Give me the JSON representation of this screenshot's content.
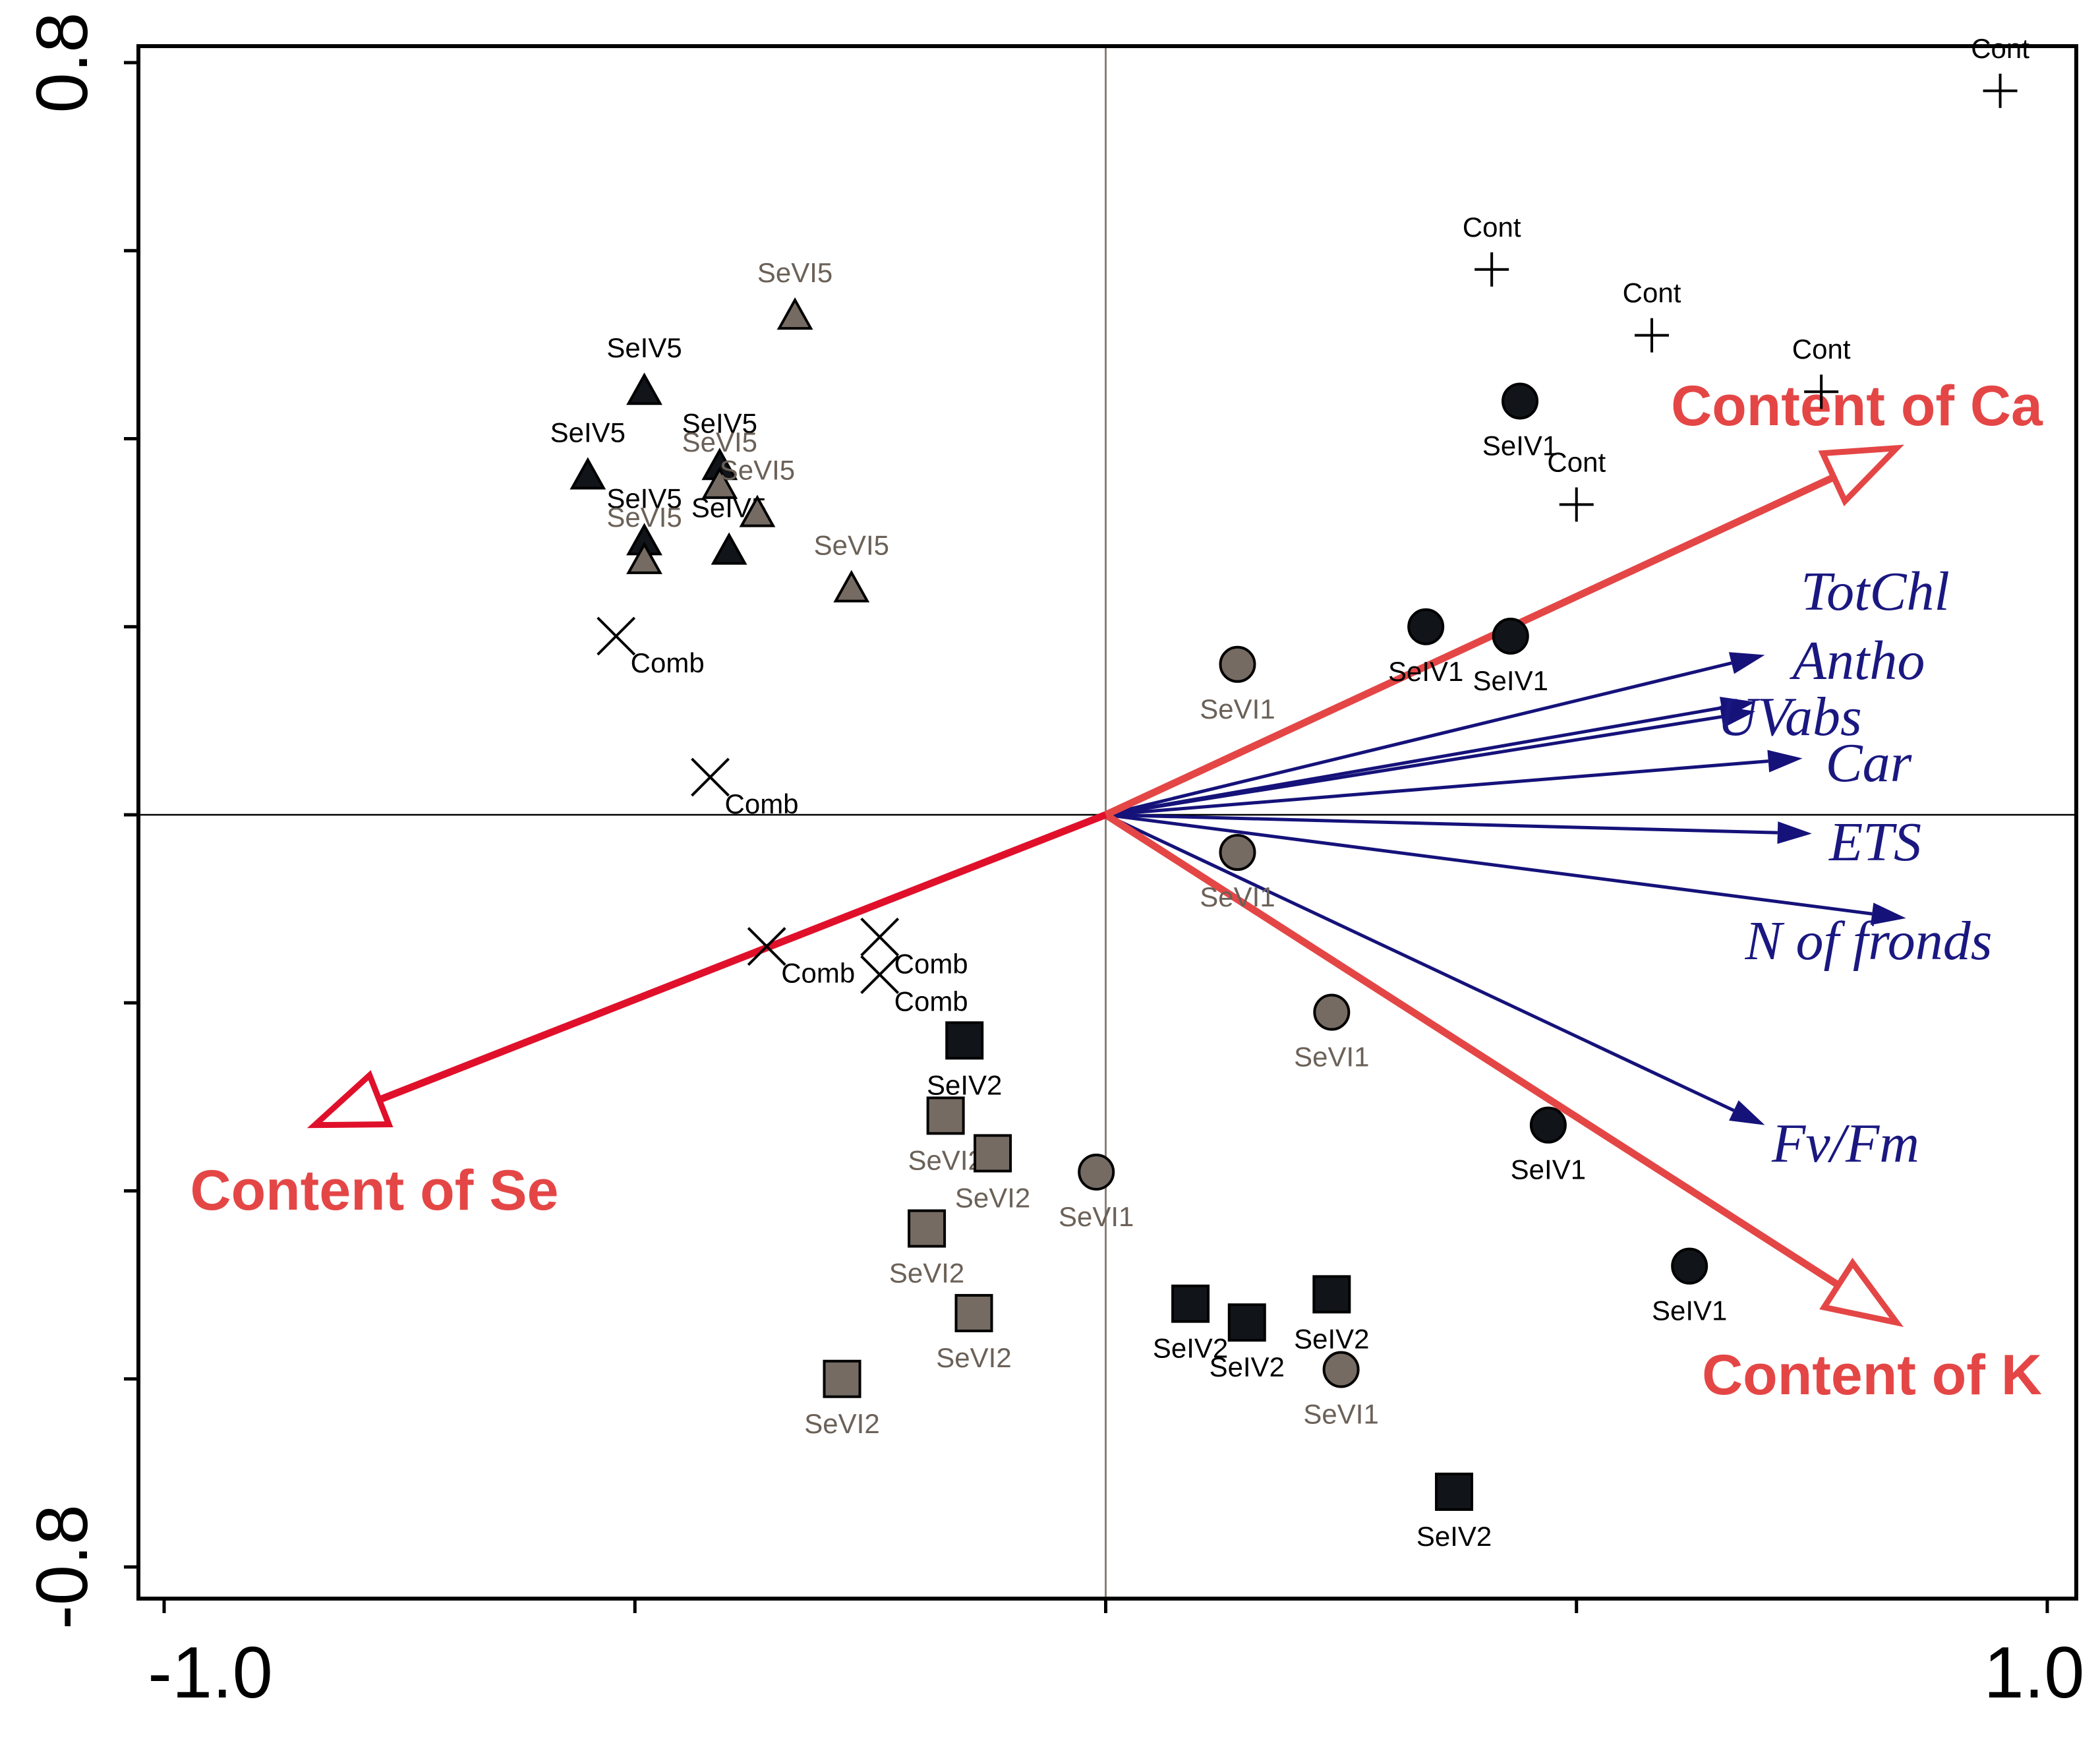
{
  "chart_data": {
    "type": "scatter",
    "subtype": "ordination-biplot",
    "title": "",
    "xlabel": "",
    "ylabel": "",
    "xlim": [
      -1.0,
      1.0
    ],
    "ylim": [
      -0.8,
      0.8
    ],
    "x_tick_labels": [
      {
        "value": -1.0,
        "label": "-1.0"
      },
      {
        "value": 1.0,
        "label": "1.0"
      }
    ],
    "y_tick_labels": [
      {
        "value": 0.8,
        "label": "0.8"
      },
      {
        "value": -0.8,
        "label": "-0.8"
      }
    ],
    "x_ticks": [
      -1.0,
      -0.5,
      0.0,
      0.5,
      1.0
    ],
    "y_ticks": [
      -0.8,
      -0.6,
      -0.4,
      -0.2,
      0.0,
      0.2,
      0.4,
      0.6,
      0.8
    ],
    "colors": {
      "black_marker": "#111419",
      "gray_marker": "#756b62",
      "gray_label": "#6b6158",
      "env_arrow": "#e44646",
      "env_arrow_dark": "#e0102b",
      "resp_arrow": "#15127a",
      "resp_text": "#1a1880",
      "env_text": "#e44646"
    },
    "sample_groups": [
      {
        "name": "Cont",
        "marker": "plus",
        "color": "#000000",
        "points": [
          {
            "x": 0.95,
            "y": 0.77,
            "label": "Cont"
          },
          {
            "x": 0.41,
            "y": 0.58,
            "label": "Cont"
          },
          {
            "x": 0.58,
            "y": 0.51,
            "label": "Cont"
          },
          {
            "x": 0.76,
            "y": 0.45,
            "label": "Cont"
          },
          {
            "x": 0.5,
            "y": 0.33,
            "label": "Cont"
          }
        ]
      },
      {
        "name": "SeIV1",
        "marker": "circle",
        "color": "#111419",
        "points": [
          {
            "x": 0.44,
            "y": 0.44,
            "label": "SeIV1"
          },
          {
            "x": 0.34,
            "y": 0.2,
            "label": "SeIV1"
          },
          {
            "x": 0.43,
            "y": 0.19,
            "label": "SeIV1"
          },
          {
            "x": 0.47,
            "y": -0.33,
            "label": "SeIV1"
          },
          {
            "x": 0.62,
            "y": -0.48,
            "label": "SeIV1"
          }
        ]
      },
      {
        "name": "SeVI1",
        "marker": "circle",
        "color": "#756b62",
        "points": [
          {
            "x": 0.14,
            "y": 0.16,
            "label": "SeVI1"
          },
          {
            "x": 0.14,
            "y": -0.04,
            "label": "SeVI1"
          },
          {
            "x": 0.24,
            "y": -0.21,
            "label": "SeVI1"
          },
          {
            "x": -0.01,
            "y": -0.38,
            "label": "SeVI1"
          },
          {
            "x": 0.25,
            "y": -0.59,
            "label": "SeVI1"
          }
        ]
      },
      {
        "name": "SeIV2",
        "marker": "square",
        "color": "#111419",
        "points": [
          {
            "x": -0.15,
            "y": -0.24,
            "label": "SeIV2"
          },
          {
            "x": 0.09,
            "y": -0.52,
            "label": "SeIV2"
          },
          {
            "x": 0.15,
            "y": -0.54,
            "label": "SeIV2"
          },
          {
            "x": 0.24,
            "y": -0.51,
            "label": "SeIV2"
          },
          {
            "x": 0.37,
            "y": -0.72,
            "label": "SeIV2"
          }
        ]
      },
      {
        "name": "SeVI2",
        "marker": "square",
        "color": "#756b62",
        "points": [
          {
            "x": -0.17,
            "y": -0.32,
            "label": "SeVI2"
          },
          {
            "x": -0.12,
            "y": -0.36,
            "label": "SeVI2"
          },
          {
            "x": -0.19,
            "y": -0.44,
            "label": "SeVI2"
          },
          {
            "x": -0.14,
            "y": -0.53,
            "label": "SeVI2"
          },
          {
            "x": -0.28,
            "y": -0.6,
            "label": "SeVI2"
          }
        ]
      },
      {
        "name": "SeIV5",
        "marker": "triangle",
        "color": "#111419",
        "points": [
          {
            "x": -0.49,
            "y": 0.45,
            "label": "SeIV5"
          },
          {
            "x": -0.55,
            "y": 0.36,
            "label": "SeIV5"
          },
          {
            "x": -0.41,
            "y": 0.37,
            "label": "SeIV5"
          },
          {
            "x": -0.49,
            "y": 0.29,
            "label": "SeIV5"
          },
          {
            "x": -0.4,
            "y": 0.28,
            "label": "SeIV5"
          }
        ]
      },
      {
        "name": "SeVI5",
        "marker": "triangle",
        "color": "#756b62",
        "points": [
          {
            "x": -0.33,
            "y": 0.53,
            "label": "SeVI5"
          },
          {
            "x": -0.41,
            "y": 0.35,
            "label": "SeVI5"
          },
          {
            "x": -0.37,
            "y": 0.32,
            "label": "SeVI5"
          },
          {
            "x": -0.49,
            "y": 0.27,
            "label": "SeVI5"
          },
          {
            "x": -0.27,
            "y": 0.24,
            "label": "SeVI5"
          }
        ]
      },
      {
        "name": "Comb",
        "marker": "cross",
        "color": "#000000",
        "points": [
          {
            "x": -0.52,
            "y": 0.19,
            "label": "Comb"
          },
          {
            "x": -0.42,
            "y": 0.04,
            "label": "Comb"
          },
          {
            "x": -0.36,
            "y": -0.14,
            "label": "Comb"
          },
          {
            "x": -0.24,
            "y": -0.13,
            "label": "Comb"
          },
          {
            "x": -0.24,
            "y": -0.17,
            "label": "Comb"
          }
        ]
      }
    ],
    "environmental_vectors": [
      {
        "name": "Content of Ca",
        "x": 0.84,
        "y": 0.39
      },
      {
        "name": "Content of K",
        "x": 0.84,
        "y": -0.54
      },
      {
        "name": "Content of Se",
        "x": -0.84,
        "y": -0.33
      }
    ],
    "response_vectors": [
      {
        "name": "TotChl",
        "x": 0.7,
        "y": 0.17
      },
      {
        "name": "Antho",
        "x": 0.69,
        "y": 0.12
      },
      {
        "name": "UVabs",
        "x": 0.69,
        "y": 0.11
      },
      {
        "name": "Car",
        "x": 0.74,
        "y": 0.06
      },
      {
        "name": "ETS",
        "x": 0.75,
        "y": -0.02
      },
      {
        "name": "N of fronds",
        "x": 0.85,
        "y": -0.11
      },
      {
        "name": "Fv/Fm",
        "x": 0.7,
        "y": -0.33
      }
    ]
  }
}
